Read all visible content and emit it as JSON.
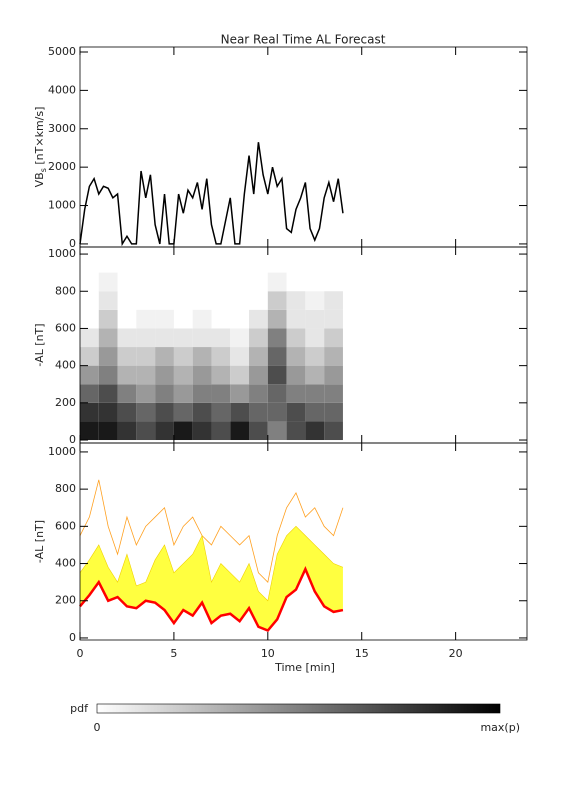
{
  "chart_data": [
    {
      "type": "line",
      "title": "Near Real Time AL Forecast",
      "ylabel": {
        "main": "VB",
        "sub": "s",
        "unit": " [nT×km/s]"
      },
      "xlim": [
        0,
        23.8
      ],
      "ylim": [
        -80,
        5130
      ],
      "yticks": [
        0,
        1000,
        2000,
        3000,
        4000,
        5000
      ],
      "series": [
        {
          "color": "#000000",
          "linewidth": 1.5,
          "x": [
            0,
            0.25,
            0.5,
            0.75,
            1,
            1.25,
            1.5,
            1.75,
            2,
            2.25,
            2.5,
            2.75,
            3,
            3.25,
            3.5,
            3.75,
            4,
            4.25,
            4.5,
            4.75,
            5,
            5.25,
            5.5,
            5.75,
            6,
            6.25,
            6.5,
            6.75,
            7,
            7.25,
            7.5,
            7.75,
            8,
            8.25,
            8.5,
            8.75,
            9,
            9.25,
            9.5,
            9.75,
            10,
            10.25,
            10.5,
            10.75,
            11,
            11.25,
            11.5,
            11.75,
            12,
            12.25,
            12.5,
            12.75,
            13,
            13.25,
            13.5,
            13.75,
            14
          ],
          "values": [
            0,
            900,
            1500,
            1700,
            1300,
            1500,
            1450,
            1200,
            1300,
            0,
            200,
            0,
            0,
            1900,
            1200,
            1800,
            500,
            0,
            1300,
            0,
            0,
            1300,
            800,
            1400,
            1200,
            1600,
            900,
            1700,
            500,
            0,
            0,
            600,
            1200,
            0,
            0,
            1300,
            2300,
            1300,
            2650,
            1800,
            1300,
            2000,
            1500,
            1700,
            400,
            300,
            900,
            1200,
            1600,
            400,
            100,
            400,
            1200,
            1600,
            1100,
            1700,
            800
          ]
        }
      ]
    },
    {
      "type": "heatmap",
      "ylabel": "-AL [nT]",
      "xlim": [
        0,
        23.8
      ],
      "ylim": [
        -16,
        1038
      ],
      "yticks": [
        0,
        200,
        400,
        600,
        800,
        1000
      ],
      "x_bins": [
        0,
        1,
        2,
        3,
        4,
        5,
        6,
        7,
        8,
        9,
        10,
        11,
        12,
        13,
        14
      ],
      "y_bins": [
        0,
        100,
        200,
        300,
        400,
        500,
        600,
        700,
        800,
        900
      ],
      "z": [
        [
          0.9,
          0.8,
          0.6,
          0.4,
          0.2,
          0.1,
          0,
          0,
          0
        ],
        [
          0.9,
          0.8,
          0.7,
          0.5,
          0.4,
          0.3,
          0.2,
          0.1,
          0.05
        ],
        [
          0.8,
          0.7,
          0.5,
          0.3,
          0.2,
          0.1,
          0,
          0,
          0
        ],
        [
          0.7,
          0.6,
          0.4,
          0.3,
          0.2,
          0.1,
          0.05,
          0,
          0
        ],
        [
          0.8,
          0.7,
          0.5,
          0.4,
          0.3,
          0.1,
          0.05,
          0,
          0
        ],
        [
          0.9,
          0.6,
          0.4,
          0.3,
          0.2,
          0.1,
          0,
          0,
          0
        ],
        [
          0.8,
          0.7,
          0.5,
          0.4,
          0.3,
          0.1,
          0.05,
          0,
          0
        ],
        [
          0.7,
          0.6,
          0.5,
          0.3,
          0.2,
          0.1,
          0,
          0,
          0
        ],
        [
          0.9,
          0.7,
          0.4,
          0.2,
          0.1,
          0.05,
          0,
          0,
          0
        ],
        [
          0.7,
          0.6,
          0.5,
          0.4,
          0.3,
          0.2,
          0.1,
          0,
          0
        ],
        [
          0.5,
          0.6,
          0.6,
          0.7,
          0.6,
          0.5,
          0.3,
          0.2,
          0.05
        ],
        [
          0.7,
          0.7,
          0.5,
          0.4,
          0.3,
          0.2,
          0.1,
          0.1,
          0
        ],
        [
          0.8,
          0.6,
          0.5,
          0.3,
          0.2,
          0.1,
          0.1,
          0.05,
          0
        ],
        [
          0.7,
          0.6,
          0.5,
          0.4,
          0.3,
          0.2,
          0.1,
          0.1,
          0
        ]
      ]
    },
    {
      "type": "band",
      "ylabel": "-AL [nT]",
      "xlabel": "Time [min]",
      "xlim": [
        0,
        23.8
      ],
      "ylim": [
        -11,
        1048
      ],
      "yticks": [
        0,
        200,
        400,
        600,
        800,
        1000
      ],
      "xticks": [
        0,
        5,
        10,
        15,
        20
      ],
      "x": [
        0,
        0.5,
        1,
        1.5,
        2,
        2.5,
        3,
        3.5,
        4,
        4.5,
        5,
        5.5,
        6,
        6.5,
        7,
        7.5,
        8,
        8.5,
        9,
        9.5,
        10,
        10.5,
        11,
        11.5,
        12,
        12.5,
        13,
        13.5,
        14
      ],
      "fill_color": "#ffff40",
      "series": [
        {
          "color": "#ff0000",
          "linewidth": 2.5,
          "values": [
            170,
            230,
            300,
            200,
            220,
            170,
            160,
            200,
            190,
            150,
            80,
            150,
            120,
            190,
            80,
            120,
            130,
            90,
            160,
            60,
            40,
            100,
            220,
            260,
            370,
            250,
            170,
            140,
            150
          ]
        },
        {
          "color": "#f0d000",
          "linewidth": 0.6,
          "values": [
            350,
            420,
            500,
            380,
            300,
            450,
            280,
            300,
            420,
            500,
            350,
            400,
            450,
            550,
            300,
            400,
            350,
            300,
            400,
            250,
            200,
            450,
            550,
            600,
            550,
            500,
            450,
            400,
            380
          ]
        },
        {
          "color": "#ffa020",
          "linewidth": 0.8,
          "values": [
            550,
            650,
            850,
            600,
            450,
            650,
            500,
            600,
            650,
            700,
            500,
            600,
            650,
            550,
            500,
            600,
            550,
            500,
            550,
            350,
            300,
            550,
            700,
            780,
            650,
            700,
            600,
            550,
            700
          ]
        }
      ]
    }
  ],
  "colorbar": {
    "label": "pdf",
    "min_label": "0",
    "max_label": "max(p)"
  }
}
